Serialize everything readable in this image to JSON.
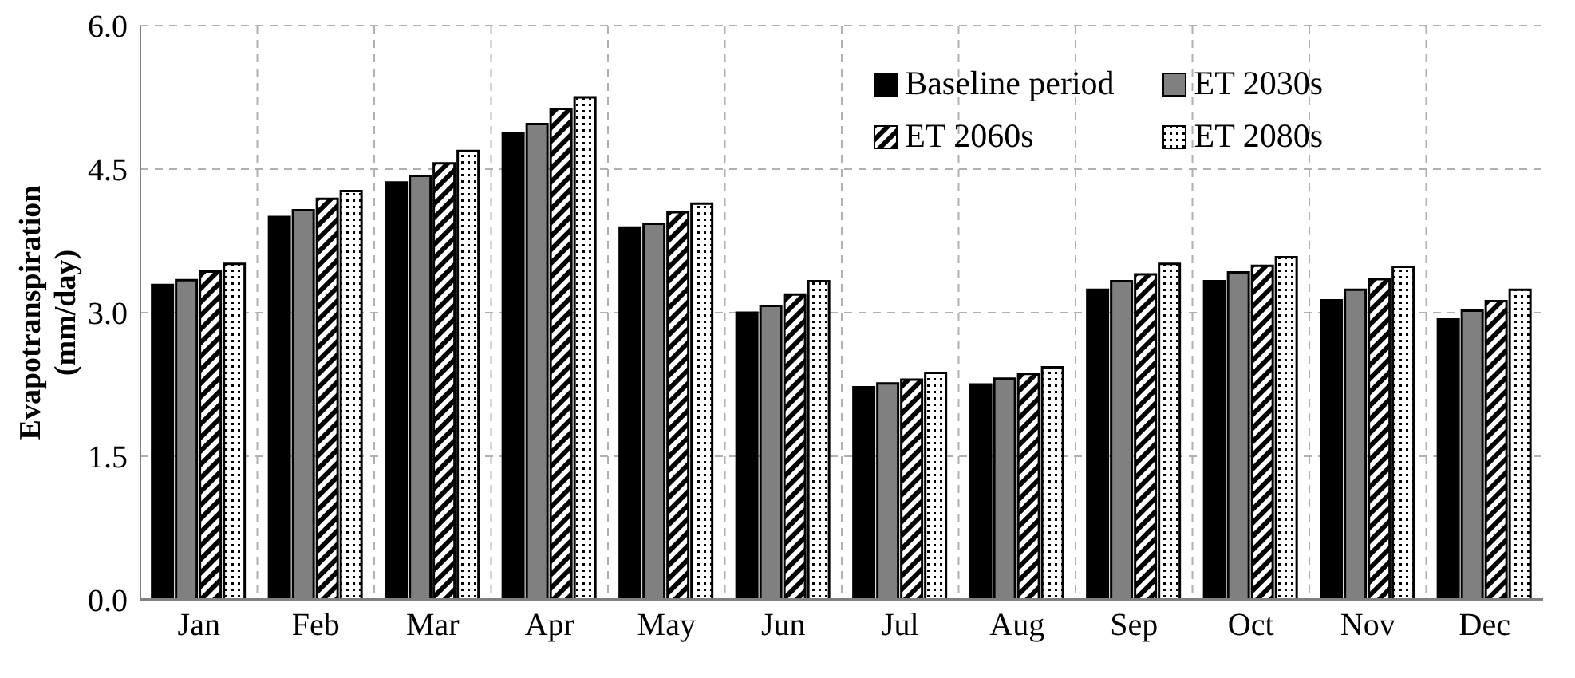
{
  "chart_data": {
    "type": "bar",
    "ylabel": "Evapotranspiration (mm/day)",
    "categories": [
      "Jan",
      "Feb",
      "Mar",
      "Apr",
      "May",
      "Jun",
      "Jul",
      "Aug",
      "Sep",
      "Oct",
      "Nov",
      "Dec"
    ],
    "series": [
      {
        "name": "Baseline period",
        "color": "#000000",
        "values": [
          3.29,
          4.0,
          4.36,
          4.88,
          3.89,
          3.0,
          2.22,
          2.25,
          3.24,
          3.33,
          3.13,
          2.93
        ]
      },
      {
        "name": "ET 2030s",
        "color": "#808080",
        "values": [
          3.34,
          4.07,
          4.43,
          4.97,
          3.93,
          3.07,
          2.26,
          2.31,
          3.33,
          3.42,
          3.24,
          3.02
        ]
      },
      {
        "name": "ET 2060s",
        "color": "#000000",
        "values": [
          3.43,
          4.19,
          4.56,
          5.13,
          4.05,
          3.19,
          2.3,
          2.36,
          3.4,
          3.49,
          3.35,
          3.12
        ]
      },
      {
        "name": "ET 2080s",
        "color": "#000000",
        "values": [
          3.51,
          4.27,
          4.69,
          5.25,
          4.14,
          3.33,
          2.37,
          2.43,
          3.51,
          3.58,
          3.48,
          3.24
        ]
      }
    ],
    "ylim": [
      0,
      6
    ],
    "yticks": [
      {
        "value": 0,
        "label": "0.0"
      },
      {
        "value": 1.5,
        "label": "1.5"
      },
      {
        "value": 3,
        "label": "3.0"
      },
      {
        "value": 4.5,
        "label": "4.5"
      },
      {
        "value": 6,
        "label": "6.0"
      }
    ],
    "grid": true,
    "legend": "top right"
  }
}
